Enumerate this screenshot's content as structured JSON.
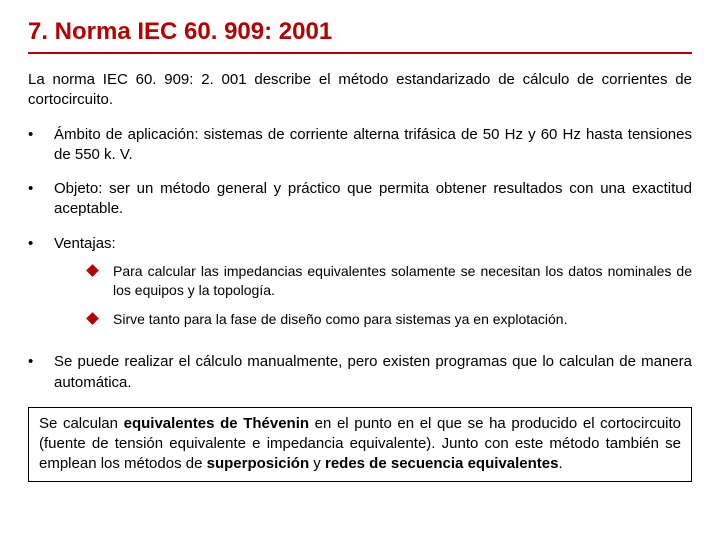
{
  "colors": {
    "title": "#b30000",
    "underline": "#b30000",
    "text": "#000000",
    "diamond": "#b30000",
    "box_border": "#000000",
    "background": "#ffffff"
  },
  "typography": {
    "title_fontsize": 24,
    "body_fontsize": 15,
    "sub_fontsize": 14,
    "font_family": "Arial"
  },
  "title": "7. Norma IEC 60. 909: 2001",
  "intro": "La norma IEC 60. 909: 2. 001 describe el método estandarizado de cálculo de corrientes de cortocircuito.",
  "bullets": [
    {
      "text": "Ámbito de aplicación: sistemas de corriente alterna trifásica de 50 Hz y 60 Hz hasta tensiones de 550 k. V.",
      "sub": []
    },
    {
      "text": "Objeto: ser un método general y práctico que permita obtener resultados con una exactitud aceptable.",
      "sub": []
    },
    {
      "text": "Ventajas:",
      "sub": [
        "Para calcular las impedancias equivalentes solamente se necesitan los datos nominales de los equipos y la topología.",
        "Sirve tanto para la fase de diseño como para sistemas ya en explotación."
      ]
    },
    {
      "text": "Se puede realizar el cálculo manualmente, pero existen programas que lo calculan de manera automática.",
      "sub": []
    }
  ],
  "note": {
    "parts": [
      {
        "t": "Se calculan ",
        "b": false
      },
      {
        "t": "equivalentes de Thévenin",
        "b": true
      },
      {
        "t": " en el punto en el que se ha producido el cortocircuito (fuente de tensión equivalente e impedancia equivalente). Junto con este método también se emplean los métodos de ",
        "b": false
      },
      {
        "t": "superposición",
        "b": true
      },
      {
        "t": " y ",
        "b": false
      },
      {
        "t": "redes de secuencia equivalentes",
        "b": true
      },
      {
        "t": ".",
        "b": false
      }
    ]
  }
}
